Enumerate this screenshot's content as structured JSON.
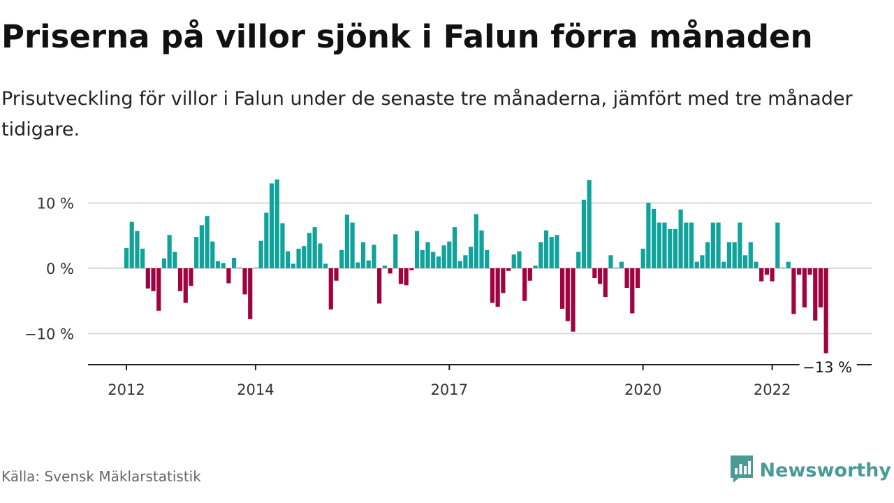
{
  "title": "Priserna på villor sjönk i Falun förra månaden",
  "subtitle": "Prisutveckling för villor i Falun under de senaste tre månaderna, jämfört med tre månader tidigare.",
  "source": "Källa: Svensk Mäklarstatistik",
  "brand": {
    "name": "Newsworthy",
    "icon": "newsworthy-logo-icon",
    "color": "#4a9a96"
  },
  "colors": {
    "positive": "#0fa39b",
    "negative": "#a0033f",
    "grid": "#d9d9d9",
    "axis": "#222222"
  },
  "chart_data": {
    "type": "bar",
    "unit": "%",
    "ylim": [
      -15,
      15
    ],
    "yticks": [
      {
        "value": 10,
        "label": "10 %"
      },
      {
        "value": 0,
        "label": "0 %"
      },
      {
        "value": -10,
        "label": "−10 %"
      }
    ],
    "xticks": [
      {
        "index": 0,
        "label": "2012"
      },
      {
        "index": 24,
        "label": "2014"
      },
      {
        "index": 60,
        "label": "2017"
      },
      {
        "index": 96,
        "label": "2020"
      },
      {
        "index": 120,
        "label": "2022"
      }
    ],
    "last_value_label": "−13 %",
    "grid": true,
    "values": [
      3.1,
      7.1,
      5.7,
      3.0,
      -3.1,
      -3.5,
      -6.5,
      1.5,
      5.1,
      2.5,
      -3.5,
      -5.3,
      -2.7,
      4.8,
      6.6,
      8.0,
      4.1,
      1.1,
      0.8,
      -2.3,
      1.6,
      0.1,
      -4.0,
      -7.8,
      0.1,
      4.2,
      8.5,
      13.0,
      13.6,
      6.9,
      2.6,
      0.7,
      3.0,
      3.4,
      5.4,
      6.3,
      3.8,
      0.7,
      -6.3,
      -1.9,
      2.8,
      8.2,
      7.0,
      0.9,
      4.0,
      1.2,
      3.6,
      -5.4,
      0.4,
      -0.8,
      5.2,
      -2.4,
      -2.6,
      -0.3,
      5.7,
      2.8,
      4.0,
      2.5,
      1.8,
      3.5,
      4.1,
      6.3,
      1.1,
      2.0,
      3.3,
      8.3,
      5.8,
      2.8,
      -5.3,
      -5.9,
      -3.8,
      -0.4,
      2.1,
      2.6,
      -5.0,
      -1.9,
      0.4,
      4.0,
      5.8,
      4.8,
      5.1,
      -6.2,
      -8.1,
      -9.7,
      2.5,
      10.5,
      13.5,
      -1.5,
      -2.4,
      -4.4,
      2.0,
      0.1,
      1.0,
      -3.0,
      -6.9,
      -3.0,
      3.0,
      10.0,
      9.1,
      7.0,
      7.0,
      6.0,
      6.0,
      9.0,
      7.0,
      7.0,
      1.0,
      2.0,
      4.0,
      7.0,
      7.0,
      1.0,
      4.0,
      4.0,
      7.0,
      2.0,
      4.0,
      1.0,
      -2.0,
      -1.0,
      -2.0,
      7.0,
      0.1,
      1.0,
      -7.0,
      -1.0,
      -6.0,
      -1.0,
      -8.0,
      -6.0,
      -13.0
    ]
  }
}
